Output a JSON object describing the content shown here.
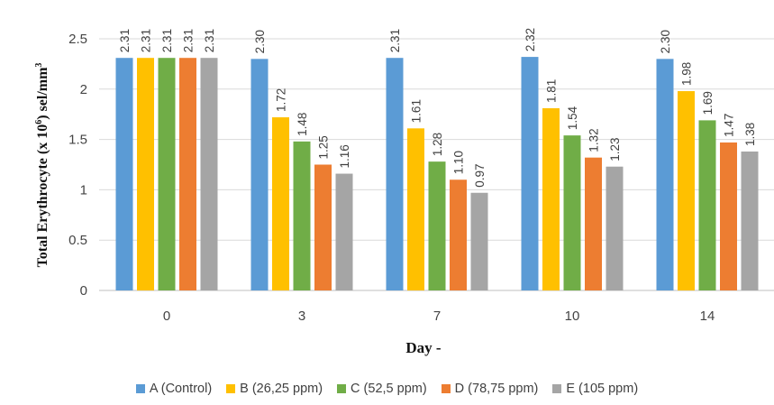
{
  "chart_data": {
    "type": "bar",
    "title": "",
    "ylabel_parts": [
      "Total Erythrocyte (x 10",
      "6",
      ") sel/mm",
      "3"
    ],
    "xlabel": "Day -",
    "categories": [
      "0",
      "3",
      "7",
      "10",
      "14"
    ],
    "ylim": [
      0,
      2.5
    ],
    "yticks": [
      "0",
      "0.5",
      "1",
      "1.5",
      "2",
      "2.5"
    ],
    "ytick_values": [
      0,
      0.5,
      1,
      1.5,
      2,
      2.5
    ],
    "grid": true,
    "legend_position": "bottom",
    "series": [
      {
        "name": "A (Control)",
        "color": "#5b9bd5",
        "values": [
          2.31,
          2.3,
          2.31,
          2.32,
          2.3
        ],
        "labels": [
          "2.31",
          "2.30",
          "2.31",
          "2.32",
          "2.30"
        ]
      },
      {
        "name": "B (26,25 ppm)",
        "color": "#ffc000",
        "values": [
          2.31,
          1.72,
          1.61,
          1.81,
          1.98
        ],
        "labels": [
          "2.31",
          "1.72",
          "1.61",
          "1.81",
          "1.98"
        ]
      },
      {
        "name": "C (52,5 ppm)",
        "color": "#70ad47",
        "values": [
          2.31,
          1.48,
          1.28,
          1.54,
          1.69
        ],
        "labels": [
          "2.31",
          "1.48",
          "1.28",
          "1.54",
          "1.69"
        ]
      },
      {
        "name": "D (78,75 ppm)",
        "color": "#ed7d31",
        "values": [
          2.31,
          1.25,
          1.1,
          1.32,
          1.47
        ],
        "labels": [
          "2.31",
          "1.25",
          "1.10",
          "1.32",
          "1.47"
        ]
      },
      {
        "name": "E (105 ppm)",
        "color": "#a5a5a5",
        "values": [
          2.31,
          1.16,
          0.97,
          1.23,
          1.38
        ],
        "labels": [
          "2.31",
          "1.16",
          "0.97",
          "1.23",
          "1.38"
        ]
      }
    ]
  }
}
